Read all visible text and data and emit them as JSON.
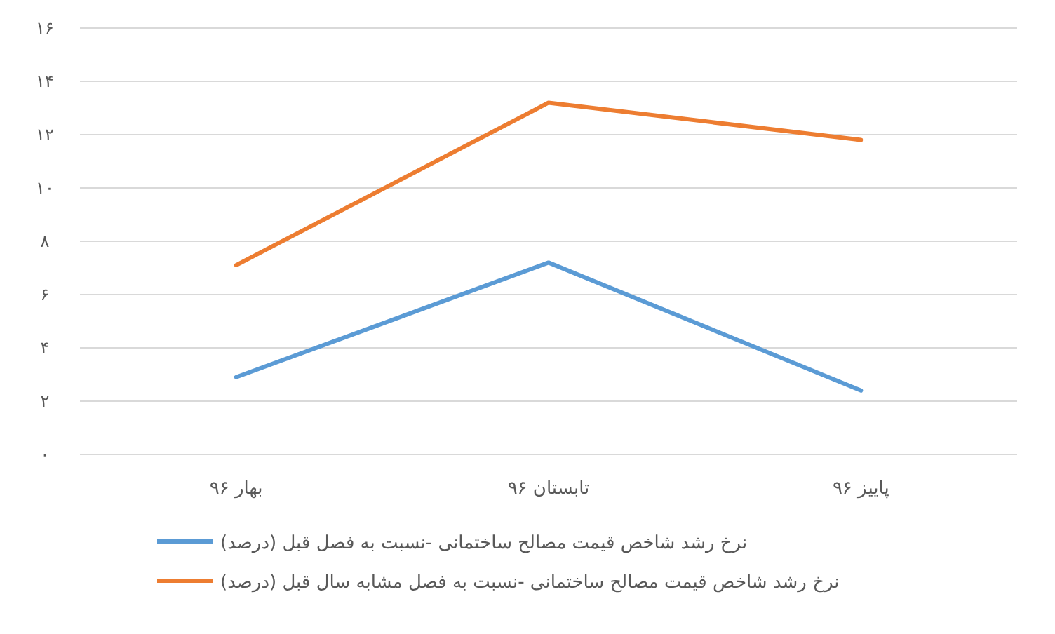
{
  "chart_data": {
    "type": "line",
    "categories": [
      "بهار ۹۶",
      "تابستان ۹۶",
      "پاییز ۹۶"
    ],
    "series": [
      {
        "name": "نرخ رشد شاخص قیمت مصالح ساختمانی -نسبت به فصل قبل (درصد)",
        "color": "#5b9bd5",
        "values": [
          2.9,
          7.2,
          2.4
        ]
      },
      {
        "name": "نرخ رشد شاخص قیمت مصالح ساختمانی -نسبت به فصل مشابه سال قبل (درصد)",
        "color": "#ed7d31",
        "values": [
          7.1,
          13.2,
          11.8
        ]
      }
    ],
    "ylim": [
      0,
      16
    ],
    "yticks": [
      {
        "value": 0,
        "label": "۰"
      },
      {
        "value": 2,
        "label": "۲"
      },
      {
        "value": 4,
        "label": "۴"
      },
      {
        "value": 6,
        "label": "۶"
      },
      {
        "value": 8,
        "label": "۸"
      },
      {
        "value": 10,
        "label": "۱۰"
      },
      {
        "value": 12,
        "label": "۱۲"
      },
      {
        "value": 14,
        "label": "۱۴"
      },
      {
        "value": 16,
        "label": "۱۶"
      }
    ],
    "grid": "y",
    "legend": "bottom",
    "marker": "none",
    "line_style": "solid"
  }
}
